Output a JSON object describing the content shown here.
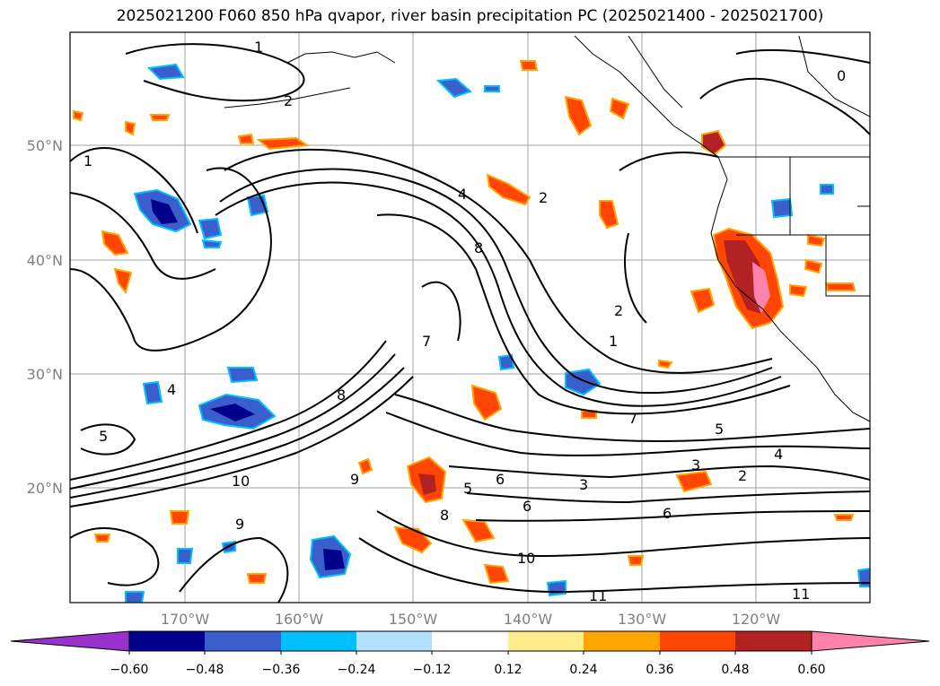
{
  "title": "2025021200 F060 850 hPa qvapor, river basin precipitation PC (2025021400 - 2025021700)",
  "latitude_labels": [
    "50°N",
    "40°N",
    "30°N",
    "20°N"
  ],
  "longitude_labels": [
    "170°W",
    "160°W",
    "150°W",
    "140°W",
    "130°W",
    "120°W"
  ],
  "colorbar": {
    "tick_labels": [
      "−0.60",
      "−0.48",
      "−0.36",
      "−0.24",
      "−0.12",
      "0.12",
      "0.24",
      "0.36",
      "0.48",
      "0.60"
    ],
    "colors": [
      "#9932cc",
      "#00008b",
      "#3a5fcd",
      "#00bfff",
      "#b0e2ff",
      "#ffffff",
      "#ffec8b",
      "#ffa500",
      "#ff4500",
      "#b22222",
      "#ff82ab"
    ]
  },
  "contour_labels": [
    "0",
    "1",
    "1",
    "1",
    "2",
    "2",
    "2",
    "2",
    "3",
    "3",
    "4",
    "4",
    "4",
    "5",
    "5",
    "5",
    "6",
    "6",
    "6",
    "7",
    "7",
    "8",
    "8",
    "8",
    "9",
    "9",
    "10",
    "10",
    "11",
    "11"
  ]
}
